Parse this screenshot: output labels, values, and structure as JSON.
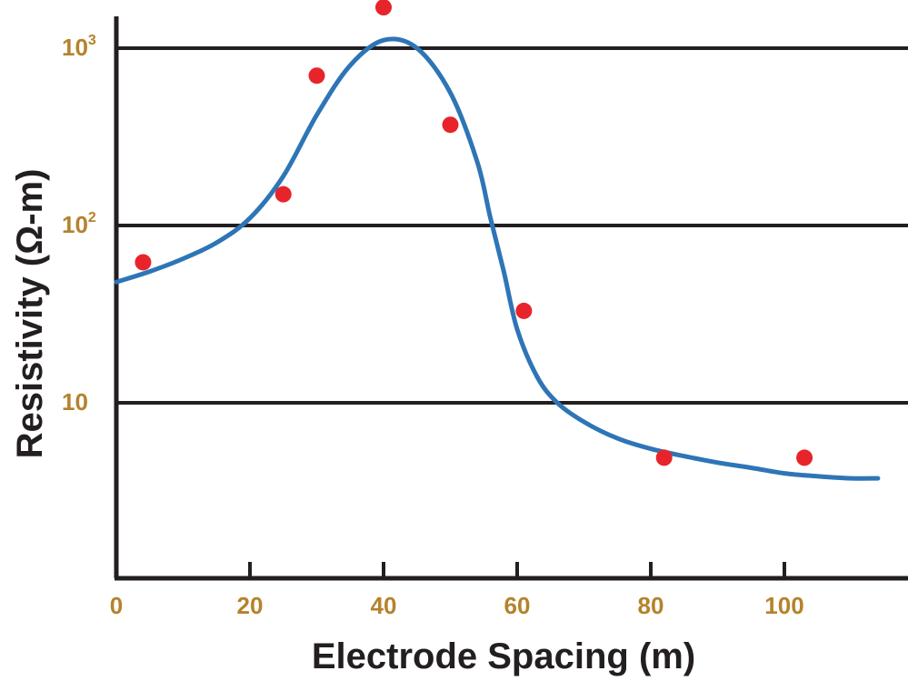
{
  "chart_data": {
    "type": "scatter",
    "xlabel": "Electrode Spacing (m)",
    "ylabel": "Resistivity (Ω-m)",
    "xlim": [
      0,
      118
    ],
    "y_scale": "log",
    "ylim": [
      1,
      1400
    ],
    "x_ticks": [
      {
        "value": 0,
        "label": "0"
      },
      {
        "value": 20,
        "label": "20"
      },
      {
        "value": 40,
        "label": "40"
      },
      {
        "value": 60,
        "label": "60"
      },
      {
        "value": 80,
        "label": "80"
      },
      {
        "value": 100,
        "label": "100"
      }
    ],
    "y_ticks": [
      {
        "value": 10,
        "base": "10",
        "exp": ""
      },
      {
        "value": 100,
        "base": "10",
        "exp": "2"
      },
      {
        "value": 1000,
        "base": "10",
        "exp": "3"
      }
    ],
    "grid": "horizontal",
    "points": {
      "color": "#e8242b",
      "x": [
        4,
        25,
        30,
        40,
        50,
        61,
        82,
        103
      ],
      "y": [
        62,
        150,
        700,
        1700,
        370,
        33,
        4.9,
        4.9
      ]
    },
    "curve": {
      "color": "#2e75b6",
      "x": [
        0,
        5,
        10,
        15,
        20,
        25,
        30,
        35,
        40,
        45,
        50,
        54,
        56,
        58,
        60,
        63,
        66,
        70,
        75,
        80,
        85,
        90,
        95,
        100,
        105,
        110,
        114
      ],
      "y": [
        48,
        55,
        65,
        80,
        110,
        190,
        420,
        800,
        1110,
        1000,
        560,
        230,
        110,
        55,
        26,
        14,
        10,
        7.8,
        6.3,
        5.5,
        5.0,
        4.6,
        4.3,
        4.0,
        3.85,
        3.75,
        3.75
      ]
    }
  }
}
